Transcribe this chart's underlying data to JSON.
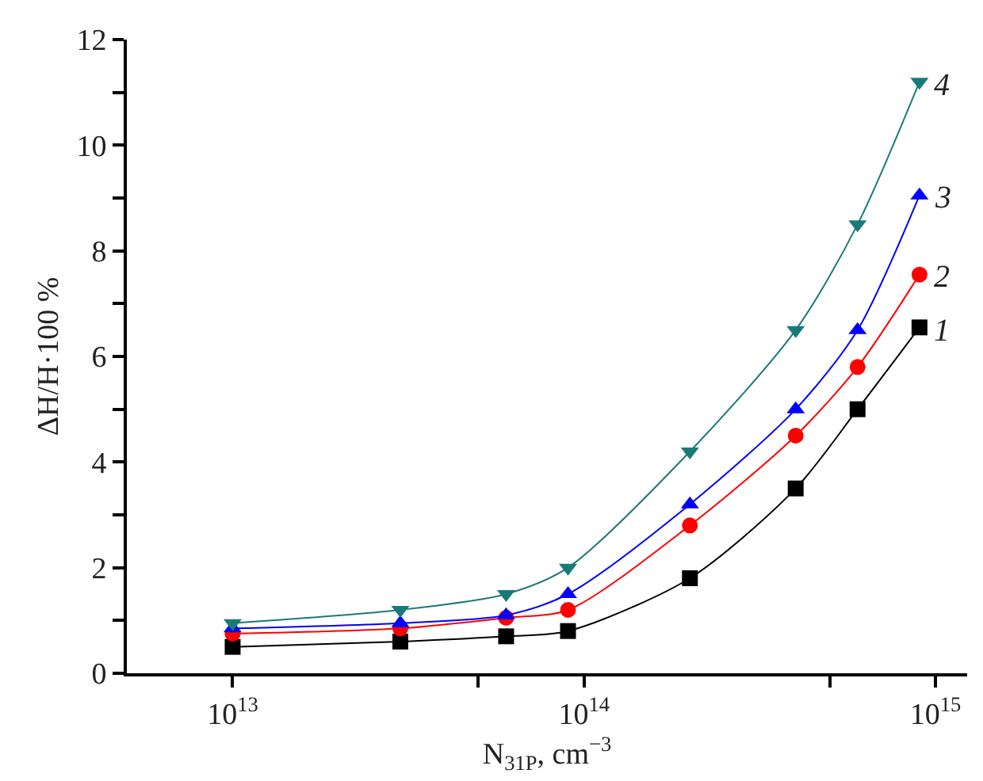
{
  "chart_data": {
    "type": "line",
    "xlabel": "N$_{31P}$, cm$^{−3}$",
    "ylabel": "ΔH/H·100 %",
    "log": "x",
    "legend": false,
    "x": [
      10000000000000.0,
      30000000000000.0,
      60000000000000.0,
      90000000000000.0,
      200000000000000.0,
      400000000000000.0,
      600000000000000.0,
      900000000000000.0
    ],
    "xlim": [
      5000000000000.0,
      1230000000000000.0
    ],
    "xticks": [
      {
        "value": 10000000000000.0,
        "label": "10$^{13}$"
      },
      {
        "value": 50000000000000.0,
        "label": null
      },
      {
        "value": 100000000000000.0,
        "label": "10$^{14}$"
      },
      {
        "value": 500000000000000.0,
        "label": null
      },
      {
        "value": 1000000000000000.0,
        "label": "10$^{15}$"
      }
    ],
    "ylim": [
      0,
      12
    ],
    "yticks": [
      0,
      {
        "value": 1,
        "label": null
      },
      2,
      {
        "value": 3,
        "label": null
      },
      4,
      {
        "value": 5,
        "label": null
      },
      6,
      {
        "value": 7,
        "label": null
      },
      8,
      {
        "value": 9,
        "label": null
      },
      10,
      {
        "value": 11,
        "label": null
      },
      12
    ],
    "series": [
      {
        "name": "1",
        "color": "#000000",
        "marker": "square",
        "values": [
          0.5,
          0.6,
          0.7,
          0.8,
          1.8,
          3.5,
          5.0,
          6.55
        ]
      },
      {
        "name": "2",
        "color": "#ff0000",
        "marker": "circle",
        "values": [
          0.75,
          0.85,
          1.05,
          1.2,
          2.8,
          4.5,
          5.8,
          7.55
        ]
      },
      {
        "name": "3",
        "color": "#0000ff",
        "marker": "triangle",
        "values": [
          0.85,
          0.95,
          1.1,
          1.5,
          3.2,
          5.0,
          6.5,
          9.05
        ]
      },
      {
        "name": "4",
        "color": "#1a7a78",
        "marker": "triangle-down",
        "values": [
          0.95,
          1.2,
          1.5,
          2.0,
          4.2,
          6.5,
          8.5,
          11.2
        ]
      }
    ]
  }
}
